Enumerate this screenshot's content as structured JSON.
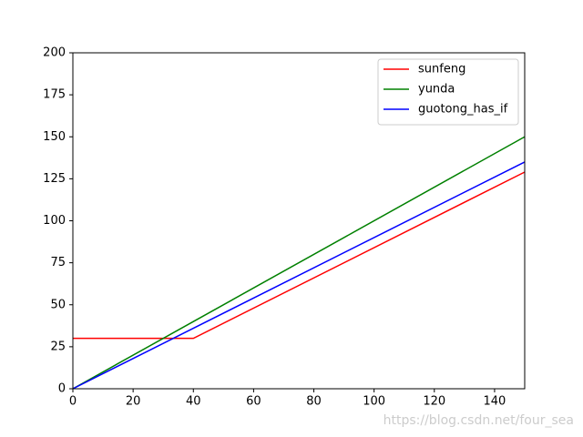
{
  "chart_data": {
    "type": "line",
    "x": [
      0,
      40,
      150
    ],
    "series": [
      {
        "name": "sunfeng",
        "color": "#ff0000",
        "values": [
          30,
          30,
          129
        ]
      },
      {
        "name": "yunda",
        "color": "#008000",
        "values": [
          0,
          40,
          150
        ]
      },
      {
        "name": "guotong_has_if",
        "color": "#0000ff",
        "values": [
          0,
          36,
          135
        ]
      }
    ],
    "xlim": [
      0,
      150
    ],
    "xticks": [
      0,
      20,
      40,
      60,
      80,
      100,
      120,
      140
    ],
    "ylim": [
      0,
      200
    ],
    "yticks": [
      0,
      25,
      50,
      75,
      100,
      125,
      150,
      175,
      200
    ],
    "grid": false,
    "legend": "upper right",
    "watermark": "https://blog.csdn.net/four_sea"
  }
}
